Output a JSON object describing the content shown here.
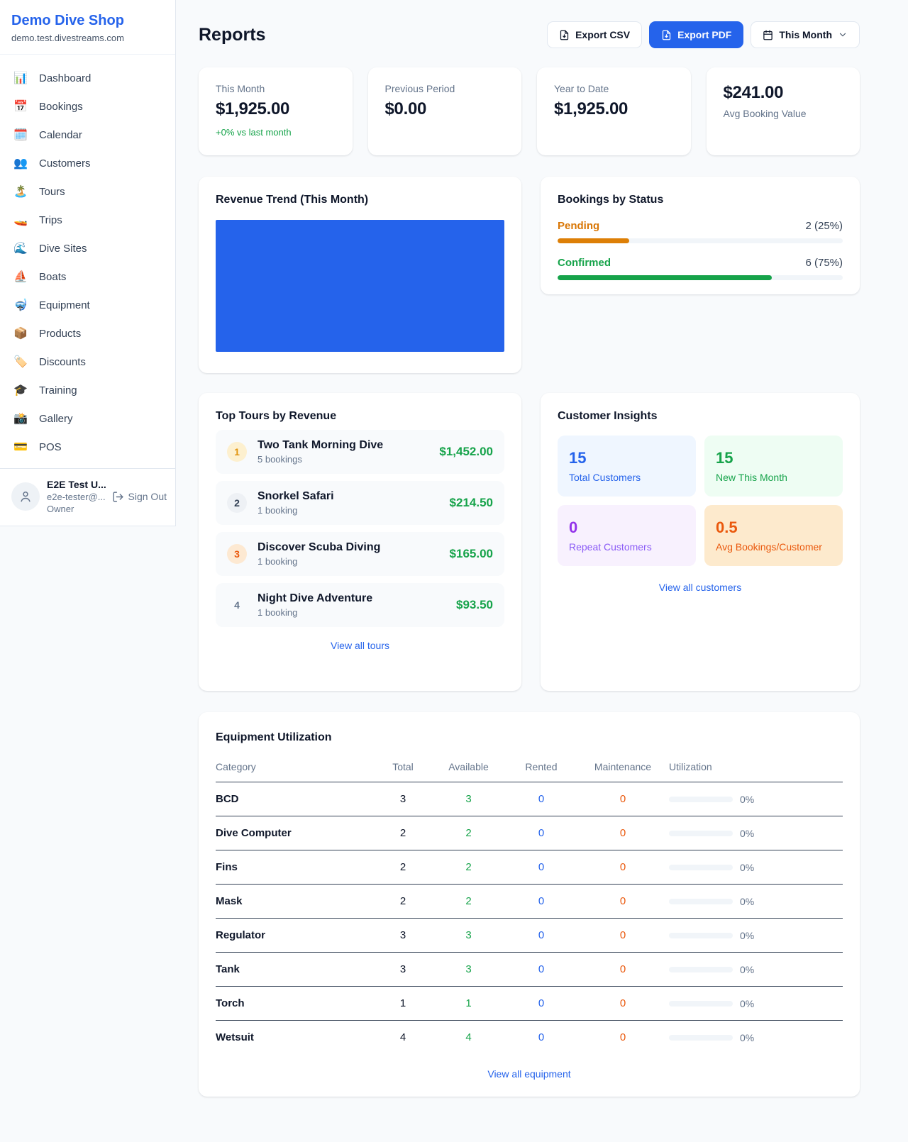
{
  "colors": {
    "accent_blue": "#2563eb",
    "green": "#16a34a",
    "orange": "#d97706",
    "deep_orange": "#ea580c",
    "purple": "#9333ea",
    "chart_blue": "#2563eb"
  },
  "sidebar": {
    "shop_name": "Demo Dive Shop",
    "domain": "demo.test.divestreams.com",
    "nav": [
      {
        "icon": "📊",
        "label": "Dashboard"
      },
      {
        "icon": "📅",
        "label": "Bookings"
      },
      {
        "icon": "🗓️",
        "label": "Calendar"
      },
      {
        "icon": "👥",
        "label": "Customers"
      },
      {
        "icon": "🏝️",
        "label": "Tours"
      },
      {
        "icon": "🚤",
        "label": "Trips"
      },
      {
        "icon": "🌊",
        "label": "Dive Sites"
      },
      {
        "icon": "⛵",
        "label": "Boats"
      },
      {
        "icon": "🤿",
        "label": "Equipment"
      },
      {
        "icon": "📦",
        "label": "Products"
      },
      {
        "icon": "🏷️",
        "label": "Discounts"
      },
      {
        "icon": "🎓",
        "label": "Training"
      },
      {
        "icon": "📸",
        "label": "Gallery"
      },
      {
        "icon": "💳",
        "label": "POS"
      }
    ],
    "user": {
      "name": "E2E Test U...",
      "email": "e2e-tester@...",
      "role": "Owner",
      "sign_out_label": "Sign Out"
    }
  },
  "header": {
    "title": "Reports",
    "export_csv_label": "Export CSV",
    "export_pdf_label": "Export PDF",
    "period_label": "This Month"
  },
  "stats": [
    {
      "label": "This Month",
      "value": "$1,925.00",
      "delta": "+0% vs last month"
    },
    {
      "label": "Previous Period",
      "value": "$0.00"
    },
    {
      "label": "Year to Date",
      "value": "$1,925.00"
    },
    {
      "label": "Avg Booking Value",
      "value": "$241.00"
    }
  ],
  "revenue_trend": {
    "title": "Revenue Trend (This Month)"
  },
  "bookings_by_status": {
    "title": "Bookings by Status",
    "rows": [
      {
        "label": "Pending",
        "count_text": "2 (25%)",
        "pct": 25
      },
      {
        "label": "Confirmed",
        "count_text": "6 (75%)",
        "pct": 75
      }
    ]
  },
  "top_tours": {
    "title": "Top Tours by Revenue",
    "items": [
      {
        "rank": "1",
        "name": "Two Tank Morning Dive",
        "bookings": "5 bookings",
        "revenue": "$1,452.00"
      },
      {
        "rank": "2",
        "name": "Snorkel Safari",
        "bookings": "1 booking",
        "revenue": "$214.50"
      },
      {
        "rank": "3",
        "name": "Discover Scuba Diving",
        "bookings": "1 booking",
        "revenue": "$165.00"
      },
      {
        "rank": "4",
        "name": "Night Dive Adventure",
        "bookings": "1 booking",
        "revenue": "$93.50"
      }
    ],
    "view_all": "View all tours"
  },
  "customer_insights": {
    "title": "Customer Insights",
    "tiles": [
      {
        "value": "15",
        "label": "Total Customers"
      },
      {
        "value": "15",
        "label": "New This Month"
      },
      {
        "value": "0",
        "label": "Repeat Customers"
      },
      {
        "value": "0.5",
        "label": "Avg Bookings/Customer"
      }
    ],
    "view_all": "View all customers"
  },
  "equipment": {
    "title": "Equipment Utilization",
    "columns": [
      "Category",
      "Total",
      "Available",
      "Rented",
      "Maintenance",
      "Utilization"
    ],
    "rows": [
      {
        "category": "BCD",
        "total": "3",
        "available": "3",
        "rented": "0",
        "maintenance": "0",
        "utilization": "0%",
        "utilization_pct": 0
      },
      {
        "category": "Dive Computer",
        "total": "2",
        "available": "2",
        "rented": "0",
        "maintenance": "0",
        "utilization": "0%",
        "utilization_pct": 0
      },
      {
        "category": "Fins",
        "total": "2",
        "available": "2",
        "rented": "0",
        "maintenance": "0",
        "utilization": "0%",
        "utilization_pct": 0
      },
      {
        "category": "Mask",
        "total": "2",
        "available": "2",
        "rented": "0",
        "maintenance": "0",
        "utilization": "0%",
        "utilization_pct": 0
      },
      {
        "category": "Regulator",
        "total": "3",
        "available": "3",
        "rented": "0",
        "maintenance": "0",
        "utilization": "0%",
        "utilization_pct": 0
      },
      {
        "category": "Tank",
        "total": "3",
        "available": "3",
        "rented": "0",
        "maintenance": "0",
        "utilization": "0%",
        "utilization_pct": 0
      },
      {
        "category": "Torch",
        "total": "1",
        "available": "1",
        "rented": "0",
        "maintenance": "0",
        "utilization": "0%",
        "utilization_pct": 0
      },
      {
        "category": "Wetsuit",
        "total": "4",
        "available": "4",
        "rented": "0",
        "maintenance": "0",
        "utilization": "0%",
        "utilization_pct": 0
      }
    ],
    "view_all": "View all equipment"
  }
}
